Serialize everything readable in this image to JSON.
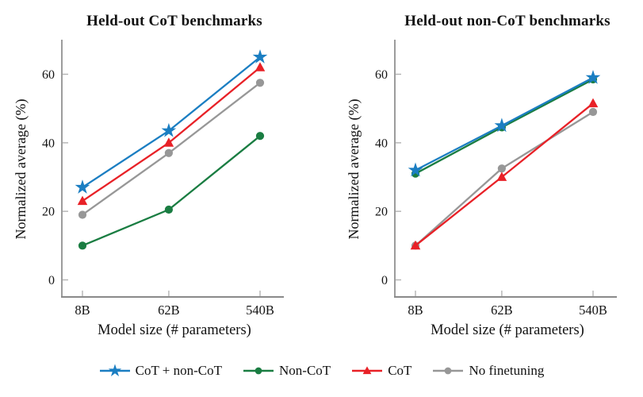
{
  "figure": {
    "background": "#ffffff",
    "colors": {
      "axis": "#8a8a8a",
      "tick": "#b3b3b3",
      "text": "#141414"
    }
  },
  "legend": {
    "items": [
      {
        "label": "CoT + non-CoT",
        "marker": "star",
        "color": "#1b7ec2"
      },
      {
        "label": "Non-CoT",
        "marker": "circle",
        "color": "#1a7d42"
      },
      {
        "label": "CoT",
        "marker": "triangle",
        "color": "#e82127"
      },
      {
        "label": "No finetuning",
        "marker": "circle",
        "color": "#979797"
      }
    ]
  },
  "chart_data": [
    {
      "type": "line",
      "title": "Held-out CoT benchmarks",
      "xlabel": "Model size (# parameters)",
      "ylabel": "Normalized average (%)",
      "x_scale": "log",
      "categories": [
        "8B",
        "62B",
        "540B"
      ],
      "x_values": [
        8,
        62,
        540
      ],
      "yticks": [
        0,
        20,
        40,
        60
      ],
      "ylim": [
        0,
        70
      ],
      "grid": false,
      "series": [
        {
          "name": "CoT + non-CoT",
          "marker": "star",
          "color": "#1b7ec2",
          "values": [
            27,
            43.5,
            65
          ]
        },
        {
          "name": "Non-CoT",
          "marker": "circle",
          "color": "#1a7d42",
          "values": [
            10,
            20.5,
            42
          ]
        },
        {
          "name": "CoT",
          "marker": "triangle",
          "color": "#e82127",
          "values": [
            23,
            40,
            62
          ]
        },
        {
          "name": "No finetuning",
          "marker": "circle",
          "color": "#979797",
          "values": [
            19,
            37,
            57.5
          ]
        }
      ]
    },
    {
      "type": "line",
      "title": "Held-out non-CoT benchmarks",
      "xlabel": "Model size (# parameters)",
      "ylabel": "Normalized average (%)",
      "x_scale": "log",
      "categories": [
        "8B",
        "62B",
        "540B"
      ],
      "x_values": [
        8,
        62,
        540
      ],
      "yticks": [
        0,
        20,
        40,
        60
      ],
      "ylim": [
        0,
        70
      ],
      "grid": false,
      "series": [
        {
          "name": "CoT + non-CoT",
          "marker": "star",
          "color": "#1b7ec2",
          "values": [
            32,
            45,
            59
          ]
        },
        {
          "name": "Non-CoT",
          "marker": "circle",
          "color": "#1a7d42",
          "values": [
            31,
            44.5,
            58.5
          ]
        },
        {
          "name": "CoT",
          "marker": "triangle",
          "color": "#e82127",
          "values": [
            10,
            30,
            51.5
          ]
        },
        {
          "name": "No finetuning",
          "marker": "circle",
          "color": "#979797",
          "values": [
            10,
            32.5,
            49
          ]
        }
      ]
    }
  ]
}
